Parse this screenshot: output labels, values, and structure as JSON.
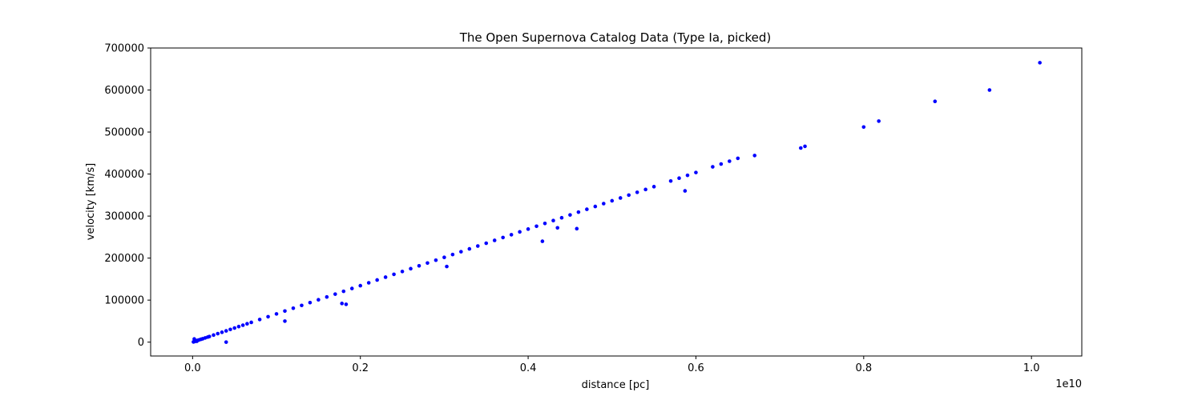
{
  "chart_data": {
    "type": "scatter",
    "title": "The Open Supernova Catalog Data (Type Ia, picked)",
    "xlabel": "distance [pc]",
    "ylabel": "velocity [km/s]",
    "x_offset_label": "1e10",
    "x_ticks": [
      0.0,
      0.2,
      0.4,
      0.6,
      0.8,
      1.0
    ],
    "x_tick_labels": [
      "0.0",
      "0.2",
      "0.4",
      "0.6",
      "0.8",
      "1.0"
    ],
    "y_ticks": [
      0,
      100000,
      200000,
      300000,
      400000,
      500000,
      600000,
      700000
    ],
    "y_tick_labels": [
      "0",
      "100000",
      "200000",
      "300000",
      "400000",
      "500000",
      "600000",
      "700000"
    ],
    "xlim": [
      -0.05,
      1.06
    ],
    "ylim": [
      -33000,
      700000
    ],
    "grid": false,
    "legend": "none",
    "marker_color": "#0000ff",
    "series": [
      {
        "x": [
          0.001,
          0.002,
          0.003,
          0.004,
          0.005,
          0.006,
          0.008,
          0.01,
          0.012,
          0.015,
          0.018,
          0.02,
          0.025,
          0.03,
          0.035,
          0.04,
          0.045,
          0.05,
          0.055,
          0.06,
          0.065,
          0.07,
          0.08,
          0.09,
          0.1,
          0.11,
          0.12,
          0.13,
          0.14,
          0.15,
          0.16,
          0.17,
          0.18,
          0.19,
          0.2,
          0.21,
          0.22,
          0.23,
          0.24,
          0.25,
          0.26,
          0.27,
          0.28,
          0.29,
          0.3,
          0.31,
          0.32,
          0.33,
          0.34,
          0.35,
          0.36,
          0.37,
          0.38,
          0.39,
          0.4,
          0.41,
          0.42,
          0.43,
          0.44,
          0.45,
          0.46,
          0.47,
          0.48,
          0.49,
          0.5,
          0.51,
          0.52,
          0.53,
          0.54,
          0.55,
          0.57,
          0.58,
          0.59,
          0.6,
          0.62,
          0.63,
          0.64,
          0.65,
          0.67,
          0.725,
          0.73,
          0.8,
          0.818,
          0.885,
          0.95,
          1.01,
          0.04,
          0.11,
          0.178,
          0.183,
          0.303,
          0.417,
          0.458,
          0.435,
          0.587,
          0.002,
          0.005
        ],
        "y": [
          500,
          1200,
          2000,
          3000,
          3500,
          4200,
          5500,
          6800,
          8000,
          10000,
          12000,
          13300,
          16800,
          20200,
          23500,
          26800,
          30200,
          33600,
          37000,
          40300,
          43700,
          47000,
          53800,
          60500,
          67200,
          74000,
          80700,
          87400,
          94100,
          100800,
          107500,
          114200,
          121000,
          127700,
          134400,
          141200,
          147900,
          154600,
          161400,
          168100,
          174800,
          181600,
          188300,
          195000,
          201700,
          208500,
          215200,
          222000,
          228700,
          235400,
          242200,
          248900,
          255600,
          262400,
          269100,
          275800,
          282500,
          289300,
          296000,
          302700,
          309400,
          316200,
          322900,
          329700,
          336400,
          343100,
          349900,
          356600,
          363300,
          370000,
          383500,
          390200,
          397000,
          403700,
          417200,
          423900,
          430600,
          437400,
          444100,
          462000,
          466000,
          512000,
          526000,
          573000,
          600000,
          665000,
          0,
          50000,
          92000,
          90000,
          180000,
          240000,
          270000,
          272000,
          360000,
          7500,
          2000
        ]
      }
    ]
  }
}
